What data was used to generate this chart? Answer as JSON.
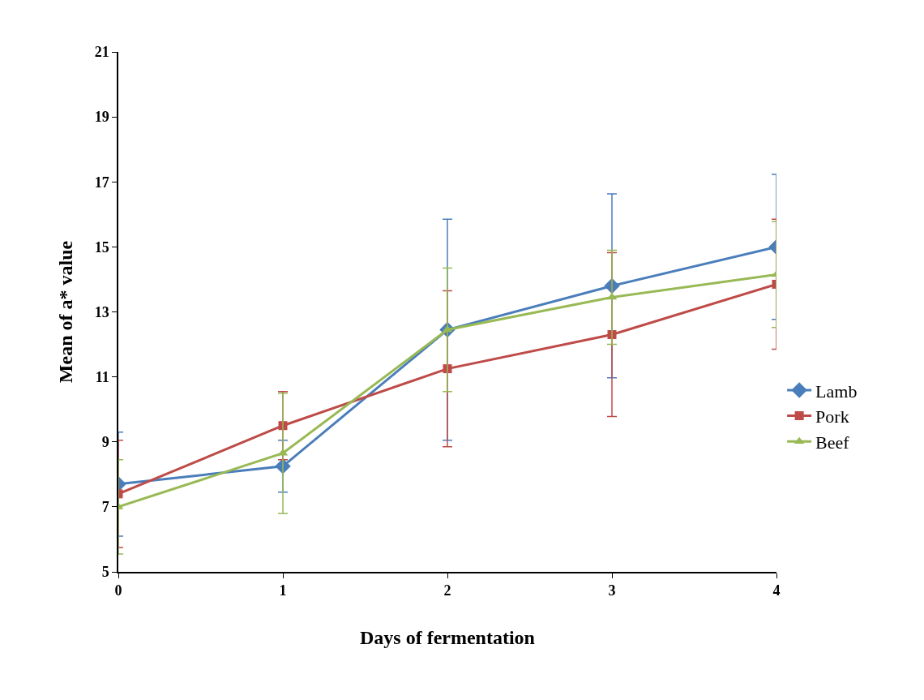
{
  "chart_data": {
    "type": "line",
    "xlabel": "Days of fermentation",
    "ylabel": "Mean of a* value",
    "x": [
      0,
      1,
      2,
      3,
      4
    ],
    "xlim": [
      0,
      4
    ],
    "xticks": [
      0,
      1,
      2,
      3,
      4
    ],
    "ylim": [
      5,
      21
    ],
    "yticks": [
      5,
      7,
      9,
      11,
      13,
      15,
      17,
      19,
      21
    ],
    "grid": false,
    "legend": "right",
    "series": [
      {
        "name": "Lamb",
        "color": "#4a7ebb",
        "marker": "diamond",
        "values": [
          7.7,
          8.25,
          12.45,
          13.8,
          15.0
        ],
        "errors": [
          1.6,
          0.8,
          3.4,
          2.83,
          2.23
        ]
      },
      {
        "name": "Pork",
        "color": "#be4b48",
        "marker": "square",
        "values": [
          7.4,
          9.5,
          11.25,
          12.3,
          13.85
        ],
        "errors": [
          1.65,
          1.05,
          2.4,
          2.52,
          2.0
        ]
      },
      {
        "name": "Beef",
        "color": "#98b954",
        "marker": "triangle",
        "values": [
          7.0,
          8.65,
          12.45,
          13.45,
          14.15
        ],
        "errors": [
          1.45,
          1.85,
          1.9,
          1.45,
          1.63
        ]
      }
    ]
  }
}
